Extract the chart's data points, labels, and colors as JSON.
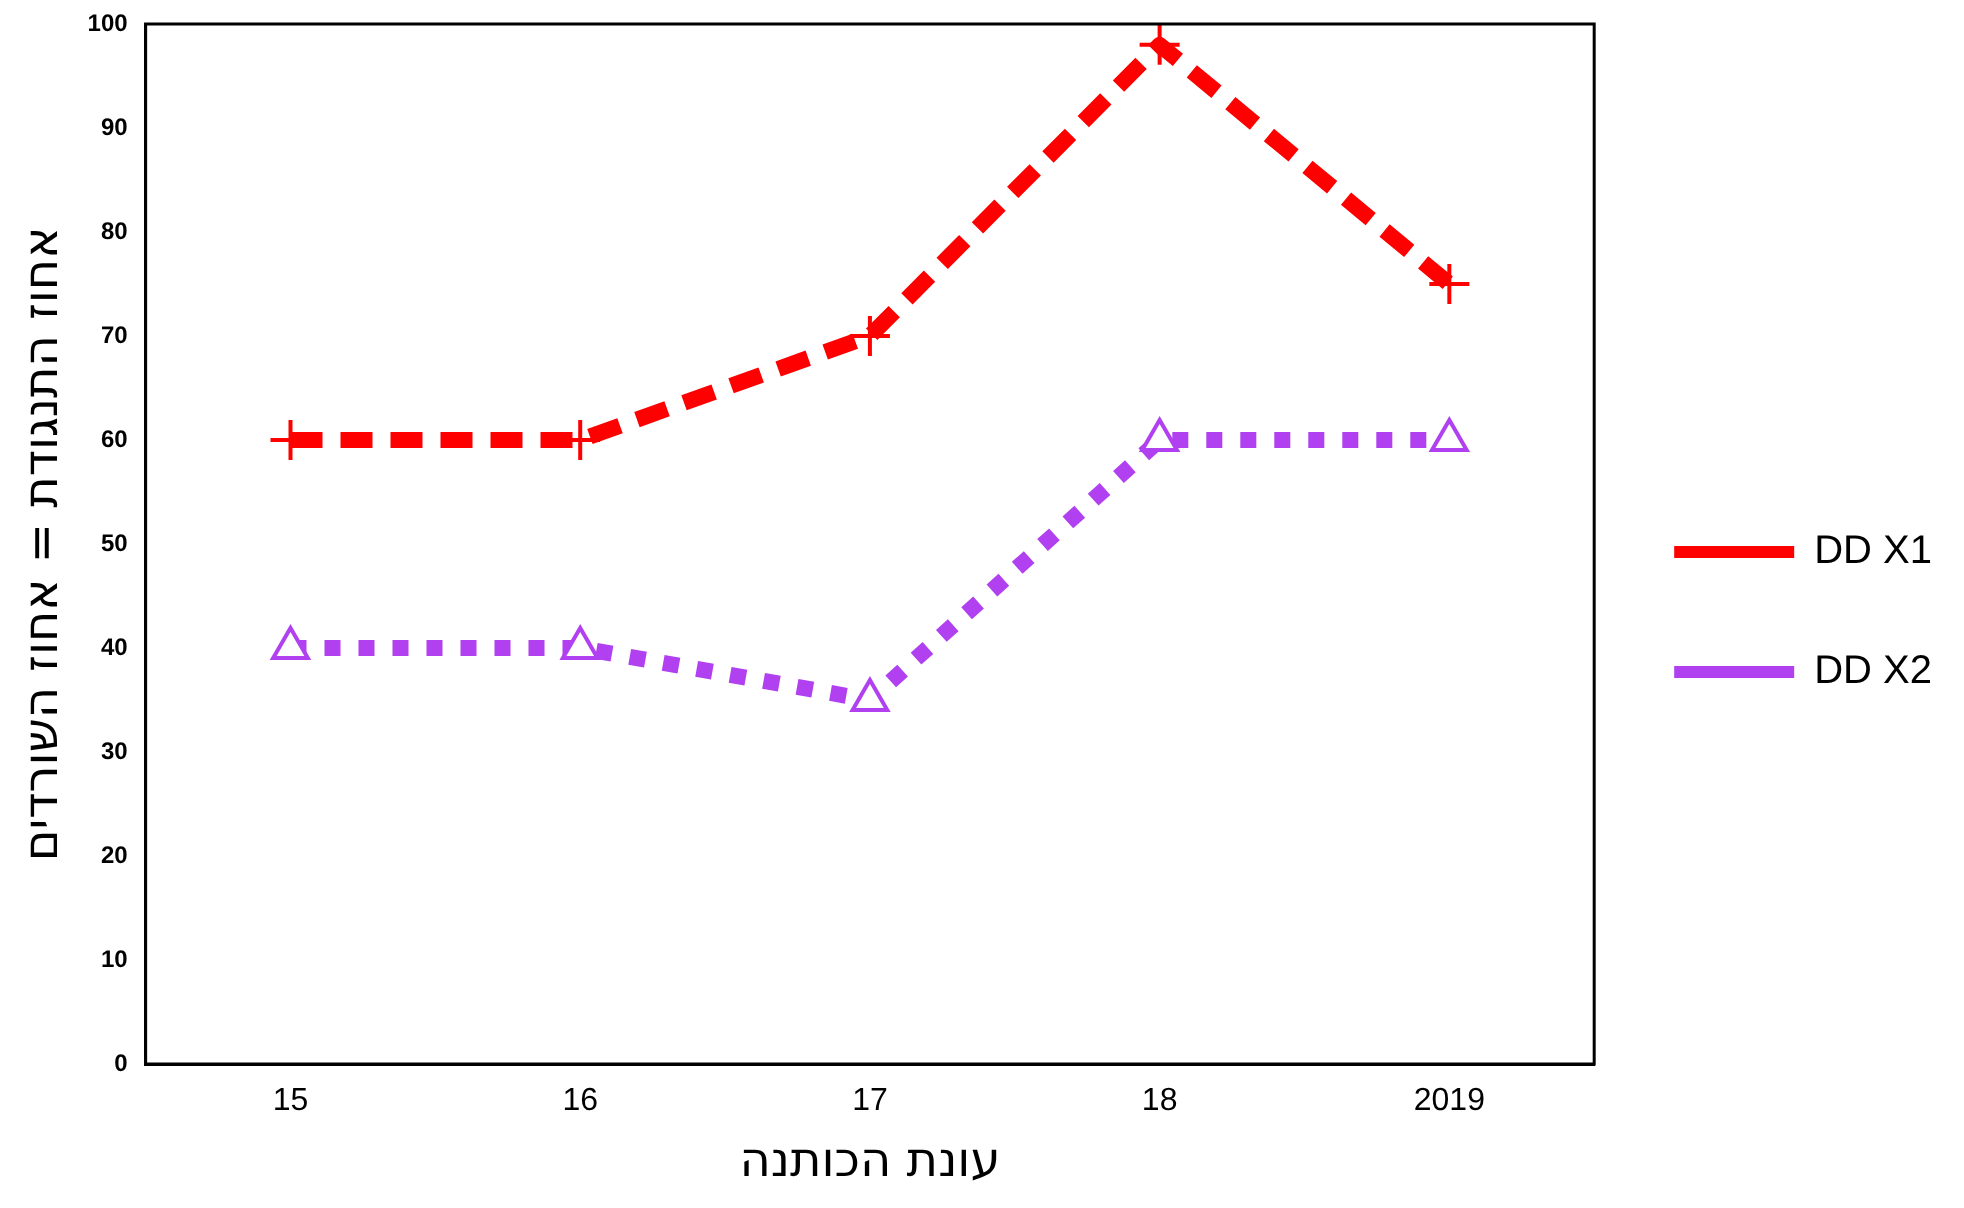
{
  "chart_data": {
    "type": "line",
    "xlabel": "עונת הכותנה",
    "ylabel": "אחוז התנגודת = אחוז השורדים",
    "categories": [
      "15",
      "16",
      "17",
      "18",
      "2019"
    ],
    "series": [
      {
        "name": "DD X1",
        "color": "#ff0000",
        "values": [
          60,
          60,
          70,
          98,
          75
        ],
        "marker": "cross",
        "line_style": "dashed"
      },
      {
        "name": "DD X2",
        "color": "#b040f0",
        "values": [
          40,
          40,
          35,
          60,
          60
        ],
        "marker": "triangle",
        "line_style": "dotted"
      }
    ],
    "ylim": [
      0,
      100
    ],
    "yticks": [
      0,
      10,
      20,
      30,
      40,
      50,
      60,
      70,
      80,
      90,
      100
    ],
    "grid": false,
    "legend": "right"
  }
}
